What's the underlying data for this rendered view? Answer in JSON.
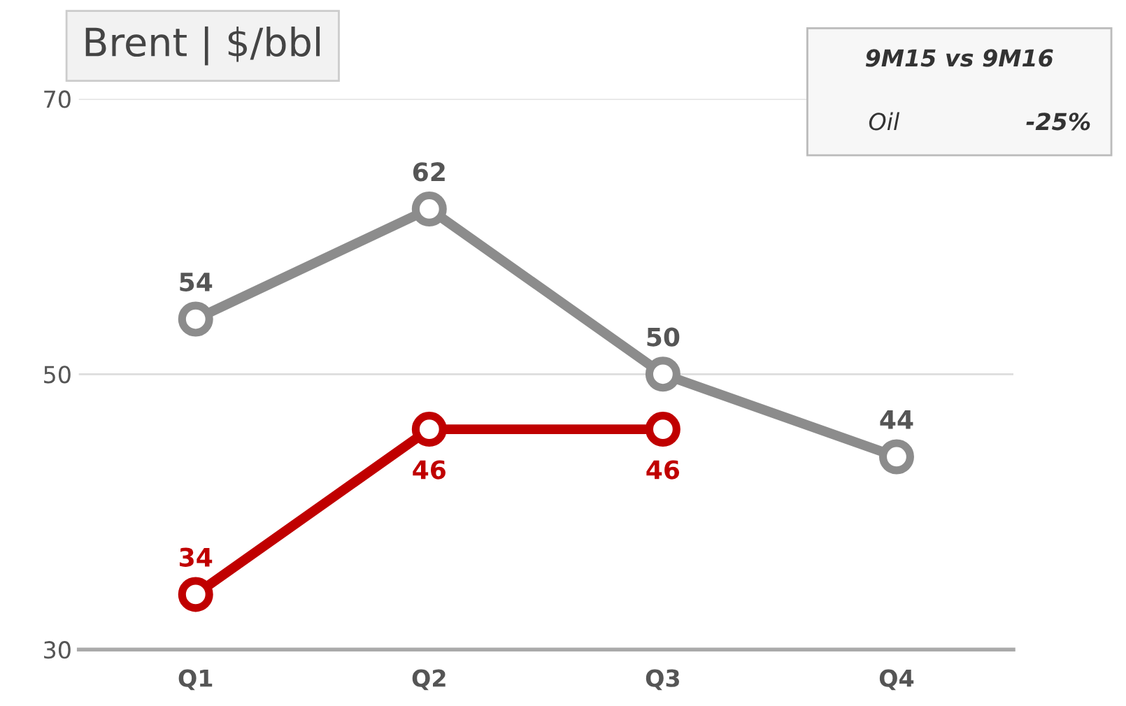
{
  "chart_data": {
    "type": "line",
    "title": "Brent | $/bbl",
    "categories": [
      "Q1",
      "Q2",
      "Q3",
      "Q4"
    ],
    "series": [
      {
        "color": "#8c8c8c",
        "values": [
          54,
          62,
          50,
          44
        ]
      },
      {
        "color": "#c00000",
        "values": [
          34,
          46,
          46,
          null
        ]
      }
    ],
    "ylim": [
      30,
      70
    ],
    "yticks": [
      30,
      50,
      70
    ],
    "grid": "y",
    "data_labels": true,
    "marker": "circle",
    "line_style": "solid",
    "annotations": [
      "9M15 vs 9M16",
      "Oil",
      "-25%"
    ]
  }
}
